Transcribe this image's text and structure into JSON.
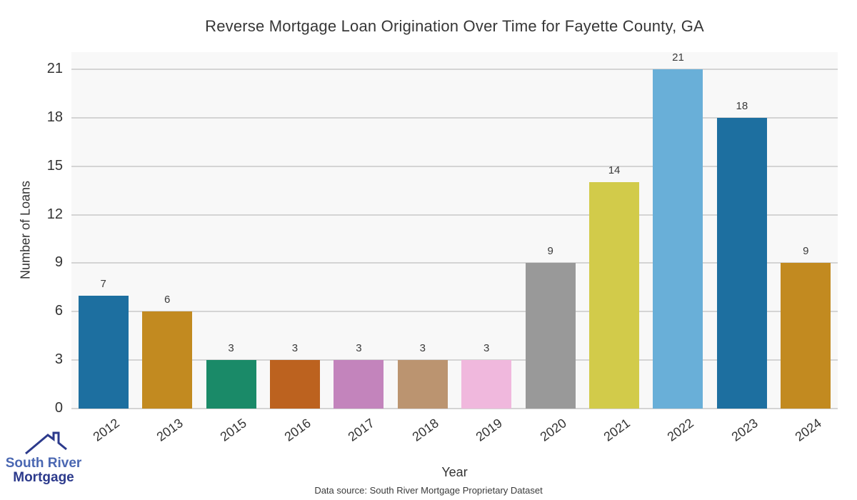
{
  "chart_data": {
    "type": "bar",
    "title": "Reverse Mortgage Loan Origination Over Time for Fayette County, GA",
    "categories": [
      "2012",
      "2013",
      "2015",
      "2016",
      "2017",
      "2018",
      "2019",
      "2020",
      "2021",
      "2022",
      "2023",
      "2024"
    ],
    "values": [
      7,
      6,
      3,
      3,
      3,
      3,
      3,
      9,
      14,
      21,
      18,
      9
    ],
    "bar_colors": [
      "#1d6fa0",
      "#c28a20",
      "#1a8a68",
      "#bc621f",
      "#c384bc",
      "#bb9470",
      "#f0b8dd",
      "#999999",
      "#d2cb4a",
      "#69afd8",
      "#1d6fa0",
      "#c28a20"
    ],
    "xlabel": "Year",
    "ylabel": "Number of Loans",
    "yticks": [
      0,
      3,
      6,
      9,
      12,
      15,
      18,
      21
    ],
    "ylim": [
      0,
      22.06
    ],
    "grid": true,
    "legend": false,
    "plot_background": "#f8f8f8",
    "grid_color": "#d4d4d4",
    "value_label_color": "#3a3a3a"
  },
  "footer": {
    "source": "Data source: South River Mortgage Proprietary Dataset"
  },
  "logo": {
    "line1": "South River",
    "line2": "Mortgage",
    "color1": "#4a67b2",
    "color2": "#2c3a8c"
  }
}
